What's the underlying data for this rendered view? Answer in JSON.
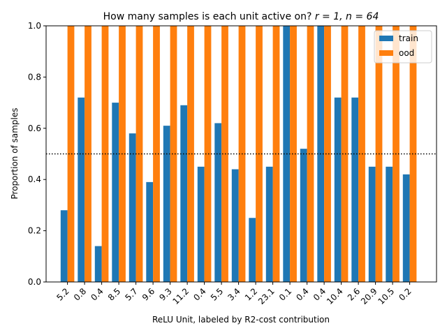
{
  "chart_data": {
    "type": "bar",
    "title_text": "How many samples is each unit active on? ",
    "title_math": "r = 1, n = 64",
    "xlabel": "ReLU Unit, labeled by R2-cost contribution",
    "ylabel": "Proportion of samples",
    "categories": [
      "5.2",
      "0.8",
      "0.4",
      "8.5",
      "5.7",
      "9.6",
      "9.3",
      "11.2",
      "0.4",
      "5.5",
      "3.4",
      "1.2",
      "23.1",
      "0.1",
      "0.4",
      "0.4",
      "10.4",
      "2.6",
      "20.9",
      "10.5",
      "0.2"
    ],
    "series": [
      {
        "name": "train",
        "color": "#1f77b4",
        "values": [
          0.28,
          0.72,
          0.14,
          0.7,
          0.58,
          0.39,
          0.61,
          0.69,
          0.45,
          0.62,
          0.44,
          0.25,
          0.45,
          1.0,
          0.52,
          1.0,
          0.72,
          0.72,
          0.45,
          0.45,
          0.42
        ]
      },
      {
        "name": "ood",
        "color": "#ff7f0e",
        "values": [
          1,
          1,
          1,
          1,
          1,
          1,
          1,
          1,
          1,
          1,
          1,
          1,
          1,
          1,
          1,
          1,
          1,
          1,
          1,
          1,
          1
        ]
      }
    ],
    "ylim": [
      0,
      1.0
    ],
    "yticks": [
      "0.0",
      "0.2",
      "0.4",
      "0.6",
      "0.8",
      "1.0"
    ],
    "reference_line": {
      "y": 0.5,
      "style": "dotted"
    },
    "legend_position": "top-right",
    "grid": false
  }
}
